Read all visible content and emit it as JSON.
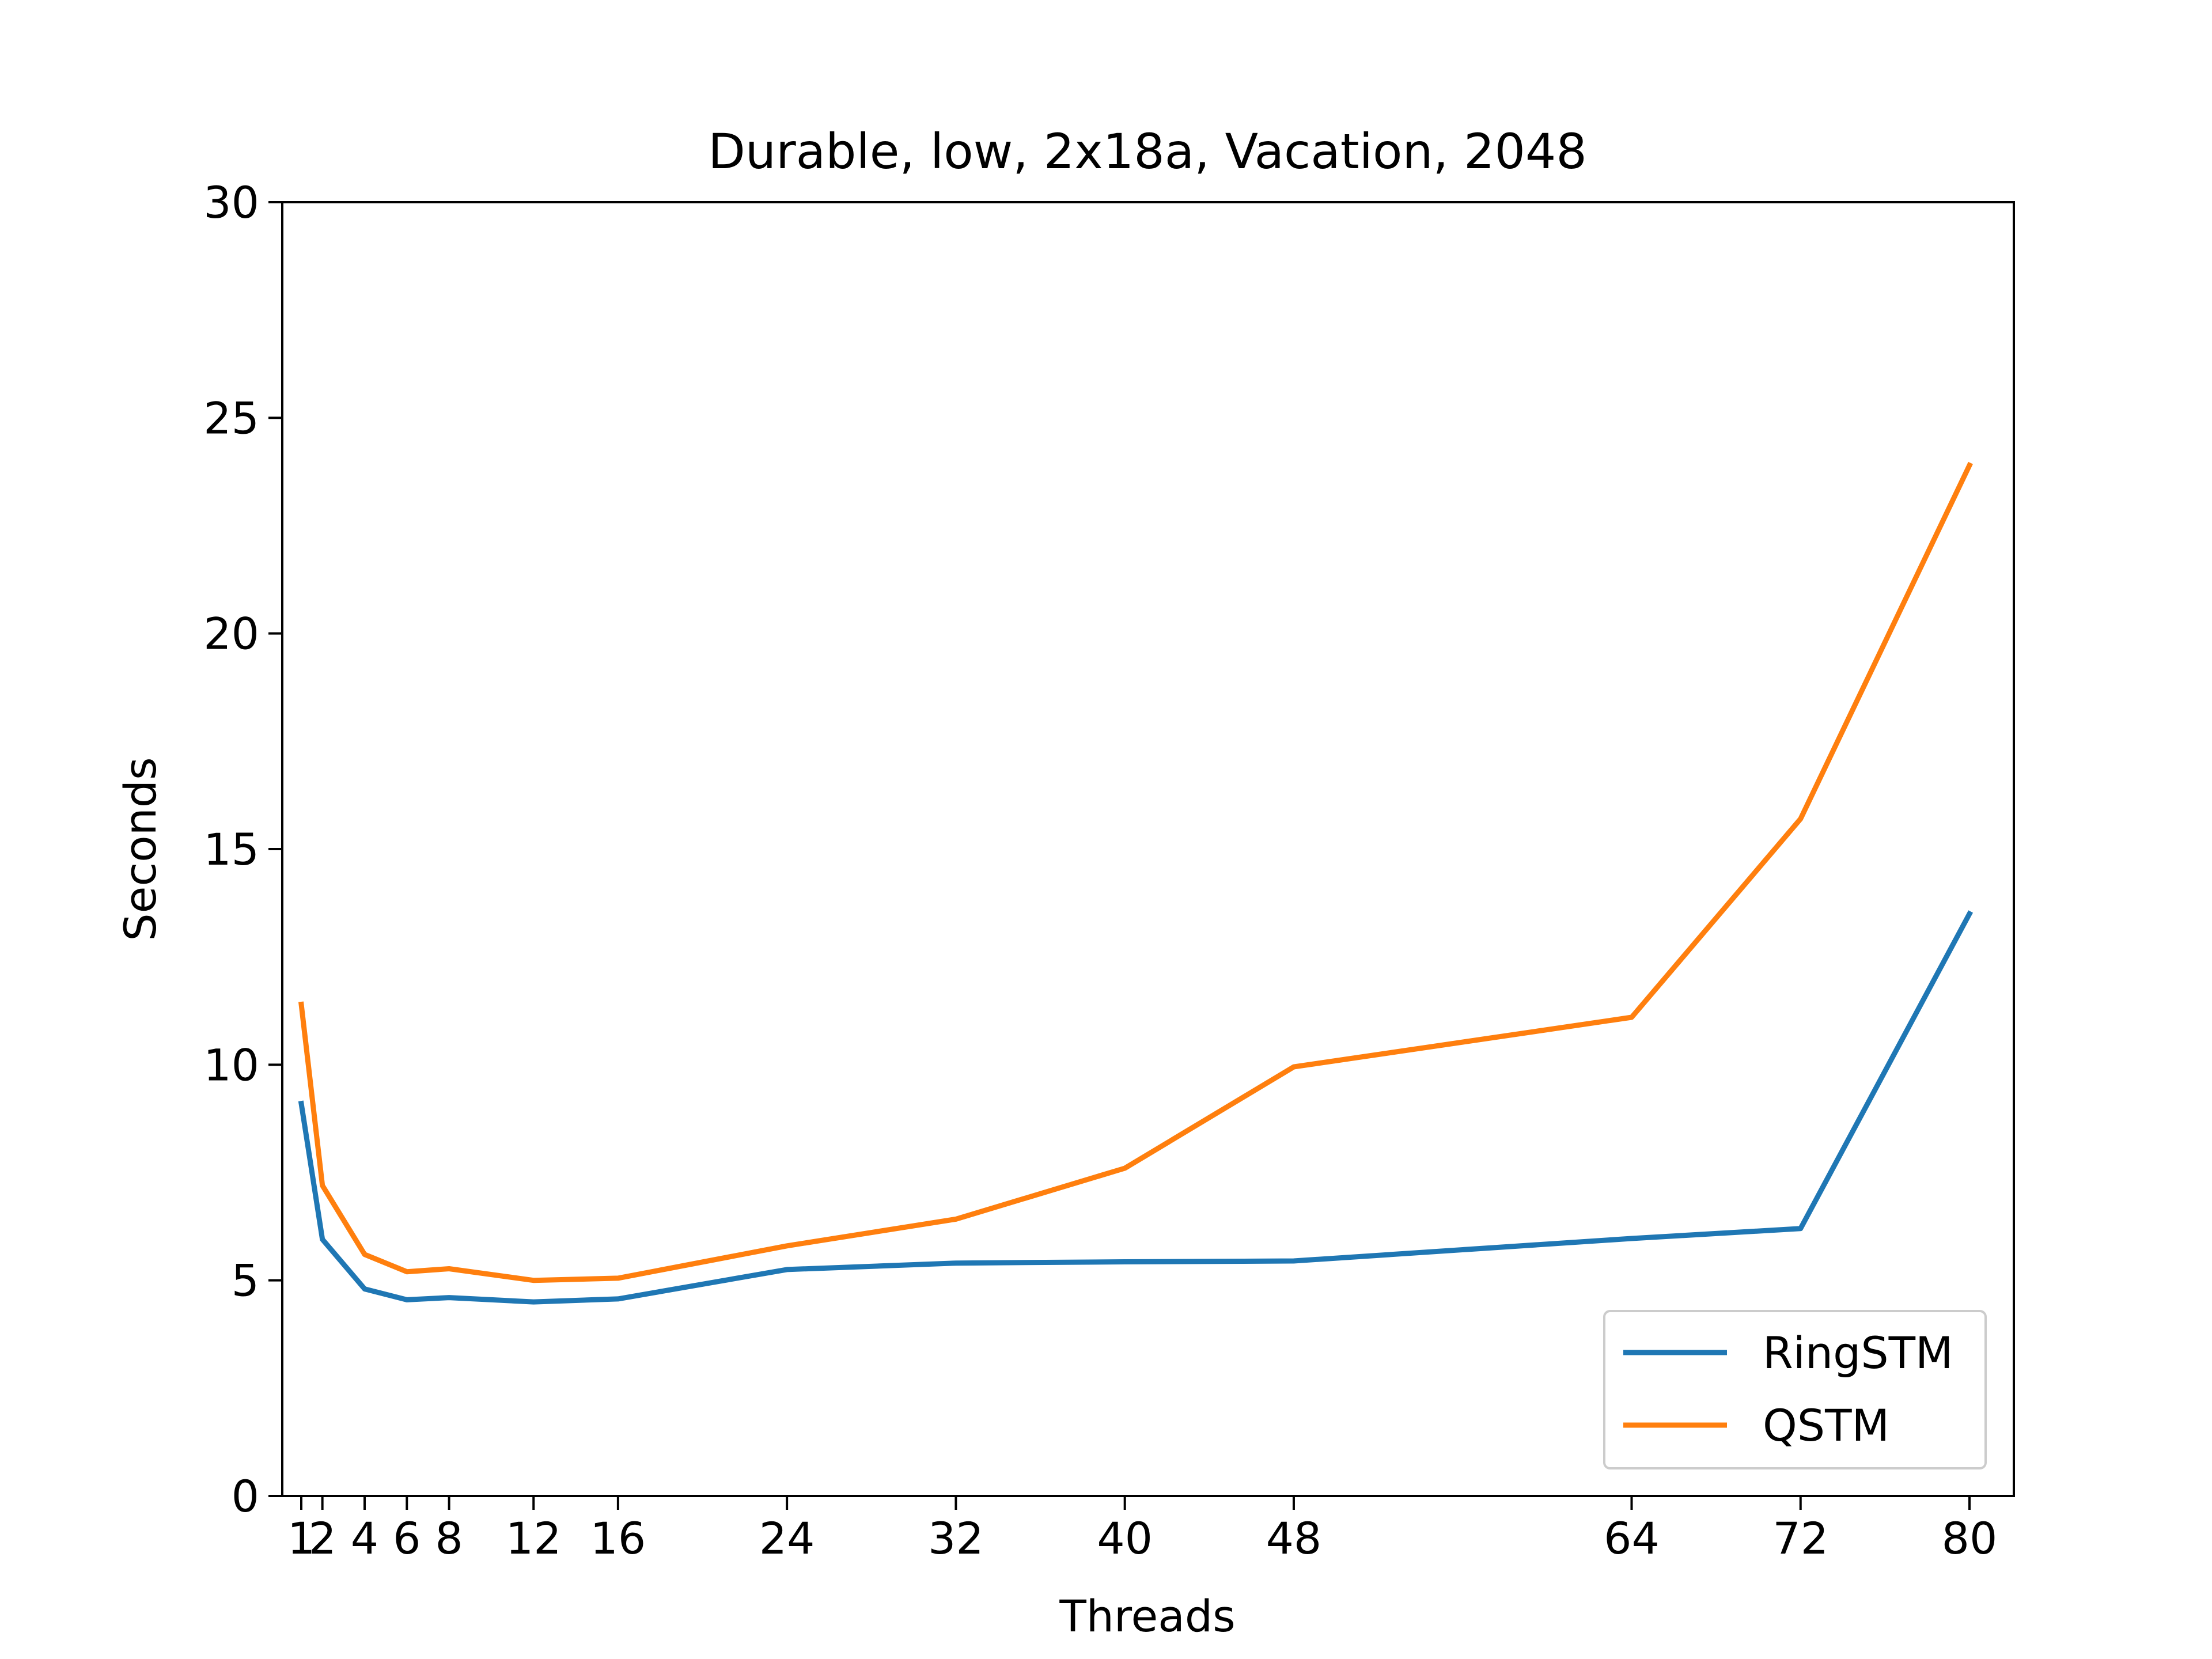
{
  "chart_data": {
    "type": "line",
    "title": "Durable, low, 2x18a, Vacation, 2048",
    "xlabel": "Threads",
    "ylabel": "Seconds",
    "x": [
      1,
      2,
      4,
      6,
      8,
      12,
      16,
      24,
      32,
      40,
      48,
      64,
      72,
      80
    ],
    "x_ticks": [
      1,
      2,
      4,
      6,
      8,
      12,
      16,
      24,
      32,
      40,
      48,
      64,
      72,
      80
    ],
    "x_tick_labels": [
      "1",
      "2",
      "4",
      "6",
      "8",
      "12",
      "16",
      "24",
      "32",
      "40",
      "48",
      "64",
      "72",
      "80"
    ],
    "xlim": [
      0.1,
      82.1
    ],
    "ylim": [
      0,
      30
    ],
    "y_ticks": [
      0,
      5,
      10,
      15,
      20,
      25,
      30
    ],
    "y_tick_labels": [
      "0",
      "5",
      "10",
      "15",
      "20",
      "25",
      "30"
    ],
    "grid": false,
    "legend_position": "lower right",
    "series": [
      {
        "name": "RingSTM",
        "color": "#1f77b4",
        "values": [
          9.1,
          5.95,
          4.8,
          4.55,
          4.6,
          4.5,
          4.57,
          5.25,
          5.4,
          5.43,
          5.45,
          5.97,
          6.2,
          13.5
        ]
      },
      {
        "name": "QSTM",
        "color": "#ff7f0e",
        "values": [
          11.4,
          7.2,
          5.6,
          5.2,
          5.27,
          5.0,
          5.05,
          5.8,
          6.42,
          7.6,
          9.95,
          11.1,
          15.7,
          23.9
        ]
      }
    ]
  }
}
